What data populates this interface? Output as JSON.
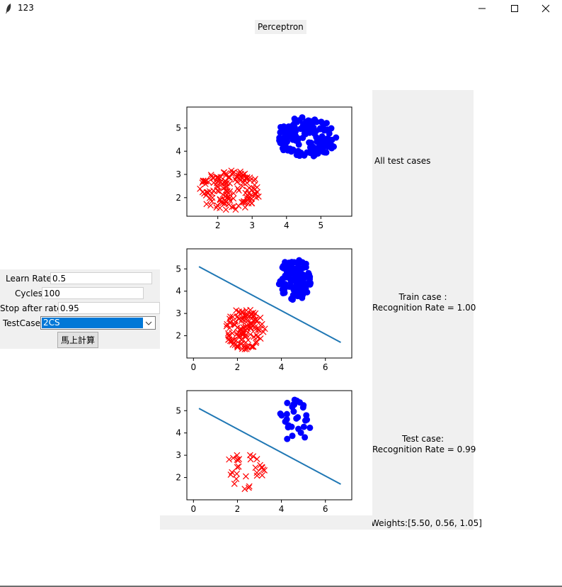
{
  "window": {
    "title": "123",
    "minimize_icon": "minimize-icon",
    "maximize_icon": "maximize-icon",
    "close_icon": "close-icon"
  },
  "header": {
    "label": "Perceptron"
  },
  "controls": {
    "learn_rate_label": "Learn Rate",
    "learn_rate_value": "0.5",
    "cycles_label": "Cycles",
    "cycles_value": "100",
    "stop_label": "Stop after rate",
    "stop_value": "0.95",
    "testcase_label": "TestCase",
    "testcase_value": "2CS",
    "calc_button": "馬上計算"
  },
  "results": {
    "all_cases": "All test cases",
    "train_line1": "Train case :",
    "train_line2": "Recognition Rate = 1.00",
    "test_line1": "Test case:",
    "test_line2": "Recognition Rate = 0.99",
    "weights": "Weights:[5.50, 0.56, 1.05]"
  },
  "colors": {
    "class_a": "#ff0000",
    "class_b": "#0000ff",
    "boundary": "#1f77b4",
    "panel_bg": "#f0f0f0",
    "selection": "#0078d7"
  },
  "chart_data": [
    {
      "type": "scatter",
      "title": "",
      "xlim": [
        1.1,
        5.9
      ],
      "ylim": [
        1.2,
        5.9
      ],
      "xticks": [
        2,
        3,
        4,
        5
      ],
      "yticks": [
        2,
        3,
        4,
        5
      ],
      "series": [
        {
          "marker": "x",
          "color": "#ff0000",
          "center": [
            2.35,
            2.3
          ],
          "spread": [
            0.6,
            0.55
          ],
          "count": 150
        },
        {
          "marker": "o",
          "color": "#0000ff",
          "center": [
            4.6,
            4.6
          ],
          "spread": [
            0.6,
            0.55
          ],
          "count": 150
        }
      ],
      "boundary": null
    },
    {
      "type": "scatter",
      "title": "",
      "xlim": [
        -0.3,
        7.2
      ],
      "ylim": [
        1.0,
        5.9
      ],
      "xticks": [
        0,
        2,
        4,
        6
      ],
      "yticks": [
        2,
        3,
        4,
        5
      ],
      "series": [
        {
          "marker": "x",
          "color": "#ff0000",
          "center": [
            2.35,
            2.3
          ],
          "spread": [
            0.6,
            0.6
          ],
          "count": 120
        },
        {
          "marker": "o",
          "color": "#0000ff",
          "center": [
            4.6,
            4.55
          ],
          "spread": [
            0.5,
            0.6
          ],
          "count": 100
        }
      ],
      "boundary": {
        "x": [
          0.25,
          6.7
        ],
        "y": [
          5.1,
          1.7
        ],
        "color": "#1f77b4"
      }
    },
    {
      "type": "scatter",
      "title": "",
      "xlim": [
        -0.3,
        7.2
      ],
      "ylim": [
        1.0,
        5.9
      ],
      "xticks": [
        0,
        2,
        4,
        6
      ],
      "yticks": [
        2,
        3,
        4,
        5
      ],
      "series": [
        {
          "marker": "x",
          "color": "#ff0000",
          "center": [
            2.35,
            2.3
          ],
          "spread": [
            0.6,
            0.55
          ],
          "count": 30
        },
        {
          "marker": "o",
          "color": "#0000ff",
          "center": [
            4.6,
            4.55
          ],
          "spread": [
            0.5,
            0.6
          ],
          "count": 30
        }
      ],
      "boundary": {
        "x": [
          0.25,
          6.7
        ],
        "y": [
          5.1,
          1.7
        ],
        "color": "#1f77b4"
      }
    }
  ]
}
